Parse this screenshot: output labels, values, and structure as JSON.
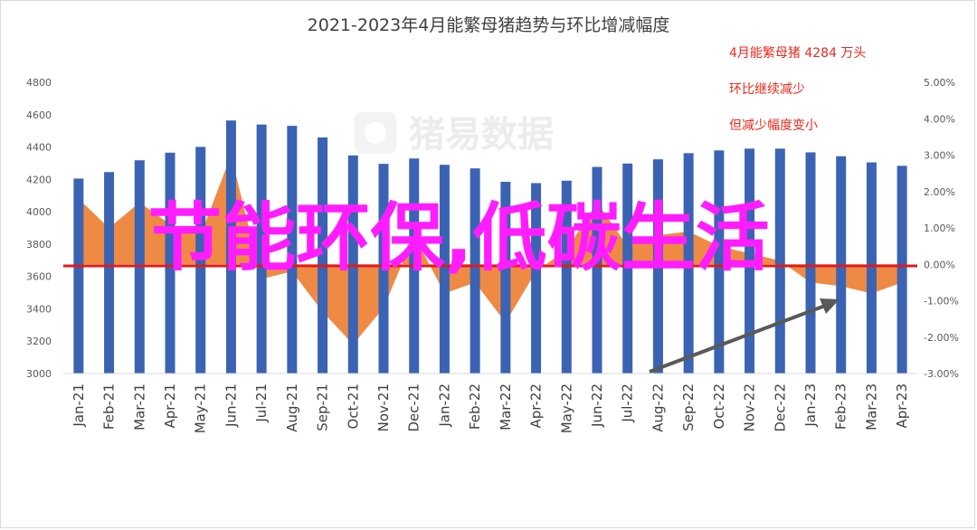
{
  "chart_data": {
    "type": "bar",
    "title": "2021-2023年4月能繁母猪趋势与环比增减幅度",
    "categories": [
      "Jan-21",
      "Feb-21",
      "Mar-21",
      "Apr-21",
      "May-21",
      "Jun-21",
      "Jul-21",
      "Aug-21",
      "Sep-21",
      "Oct-21",
      "Nov-21",
      "Dec-21",
      "Jan-22",
      "Feb-22",
      "Mar-22",
      "Apr-22",
      "May-22",
      "Jun-22",
      "Jul-22",
      "Aug-22",
      "Sep-22",
      "Oct-22",
      "Nov-22",
      "Dec-22",
      "Jan-23",
      "Feb-23",
      "Mar-23",
      "Apr-23"
    ],
    "series": [
      {
        "type": "bar",
        "axis": "left",
        "color": "#3b63b3",
        "values": [
          4205,
          4245,
          4318,
          4365,
          4401,
          4564,
          4539,
          4531,
          4459,
          4348,
          4296,
          4329,
          4290,
          4268,
          4185,
          4177,
          4192,
          4277,
          4298,
          4324,
          4362,
          4379,
          4390,
          4390,
          4367,
          4343,
          4305,
          4284
        ]
      },
      {
        "type": "area",
        "axis": "right",
        "color": "#ed7d31",
        "values": [
          1.8,
          1.0,
          1.7,
          1.1,
          0.8,
          3.0,
          -0.4,
          -0.2,
          -1.3,
          -2.2,
          -1.2,
          0.8,
          -0.8,
          -0.5,
          -1.6,
          -0.2,
          0.4,
          1.7,
          0.5,
          0.8,
          0.9,
          0.5,
          0.3,
          0.1,
          -0.5,
          -0.6,
          -0.8,
          -0.5
        ]
      }
    ],
    "ylim_left": [
      3000,
      4800
    ],
    "yticks_left": [
      "4800",
      "4600",
      "4400",
      "4200",
      "4000",
      "3800",
      "3600",
      "3400",
      "3200",
      "3000"
    ],
    "ylim_right": [
      -3,
      5
    ],
    "yticks_right": [
      "5.00%",
      "4.00%",
      "3.00%",
      "2.00%",
      "1.00%",
      "0.00%",
      "-1.00%",
      "-2.00%",
      "-3.00%"
    ],
    "zero_line_color": "#e11b1b",
    "annotations": [
      "4月能繁母猪 4284 万头",
      "环比继续减少",
      "但减少幅度变小"
    ],
    "grid": false
  },
  "overlay_text": "节能环保,低碳生活",
  "watermark_text": "猪易数据"
}
